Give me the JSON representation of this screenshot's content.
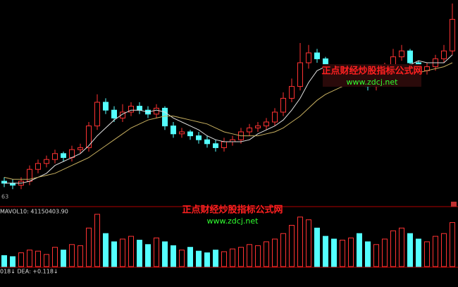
{
  "chart_data": {
    "type": "candlestick",
    "open": [
      10,
      9,
      8,
      10,
      16,
      19,
      21,
      24,
      22,
      26,
      27,
      38,
      50,
      46,
      42,
      45,
      48,
      46,
      44,
      47,
      38,
      34,
      35,
      33,
      31,
      29,
      27,
      30,
      31,
      35,
      37,
      38,
      40,
      45,
      52,
      58,
      70,
      75,
      72,
      63,
      62,
      64,
      66,
      62,
      58,
      60,
      68,
      73,
      76,
      70,
      66,
      68,
      72,
      76
    ],
    "high": [
      12,
      11,
      12,
      18,
      21,
      23,
      26,
      25,
      28,
      29,
      40,
      54,
      52,
      48,
      49,
      50,
      50,
      48,
      49,
      48,
      40,
      37,
      36,
      35,
      33,
      31,
      32,
      33,
      37,
      39,
      40,
      42,
      47,
      55,
      62,
      80,
      79,
      77,
      73,
      65,
      66,
      68,
      67,
      63,
      62,
      70,
      77,
      79,
      77,
      71,
      70,
      74,
      79,
      100
    ],
    "low": [
      7,
      6,
      6,
      8,
      14,
      17,
      19,
      20,
      20,
      24,
      25,
      36,
      44,
      40,
      40,
      43,
      44,
      42,
      42,
      36,
      32,
      32,
      31,
      29,
      27,
      25,
      25,
      28,
      29,
      33,
      35,
      36,
      38,
      43,
      50,
      56,
      67,
      70,
      61,
      60,
      60,
      62,
      60,
      56,
      56,
      58,
      66,
      71,
      68,
      64,
      64,
      66,
      70,
      74
    ],
    "close": [
      9,
      8,
      10,
      16,
      19,
      21,
      24,
      22,
      26,
      27,
      38,
      50,
      46,
      42,
      45,
      48,
      46,
      44,
      47,
      38,
      34,
      35,
      33,
      31,
      29,
      27,
      30,
      31,
      35,
      37,
      38,
      40,
      45,
      52,
      58,
      70,
      75,
      72,
      63,
      62,
      64,
      66,
      62,
      58,
      60,
      68,
      73,
      76,
      70,
      66,
      68,
      72,
      76,
      92
    ],
    "ylim": [
      0,
      100
    ],
    "lines": [
      {
        "color": "#e0e0e0",
        "values": [
          9,
          9,
          9,
          10,
          12,
          14,
          18,
          20,
          22,
          24,
          28,
          33,
          37,
          41,
          44,
          46,
          46,
          45,
          46,
          45,
          42,
          40,
          38,
          36,
          33,
          31,
          30,
          30,
          30,
          31,
          34,
          36,
          38,
          41,
          46,
          52,
          60,
          66,
          68,
          68,
          66,
          65,
          64,
          63,
          62,
          62,
          63,
          66,
          69,
          71,
          70,
          70,
          70,
          74
        ]
      },
      {
        "color": "#c8b060",
        "values": [
          12,
          11,
          11,
          11,
          12,
          13,
          14,
          16,
          18,
          20,
          22,
          25,
          28,
          31,
          34,
          37,
          39,
          41,
          42,
          43,
          43,
          42,
          41,
          40,
          39,
          37,
          35,
          34,
          33,
          33,
          33,
          34,
          35,
          37,
          40,
          43,
          47,
          51,
          54,
          56,
          58,
          59,
          60,
          61,
          61,
          62,
          62,
          63,
          64,
          65,
          66,
          67,
          68,
          70
        ]
      }
    ],
    "volume": [
      20,
      18,
      25,
      30,
      28,
      22,
      35,
      30,
      40,
      38,
      70,
      95,
      60,
      45,
      50,
      55,
      48,
      40,
      52,
      45,
      38,
      30,
      35,
      28,
      25,
      30,
      27,
      32,
      35,
      40,
      38,
      45,
      50,
      60,
      75,
      90,
      85,
      70,
      55,
      50,
      48,
      52,
      60,
      45,
      40,
      50,
      65,
      70,
      60,
      50,
      45,
      55,
      60,
      80
    ],
    "volume_ylim": [
      0,
      100
    ],
    "up_color": "#ff3232",
    "down_color": "#54ffff",
    "price_label": "63",
    "mavol_label": "MAVOL10: 41150403.90",
    "macd_label": "018↓ DEA: +0.118↓",
    "watermark_cn": "正点财经炒股指标公式网",
    "watermark_url": "www.zdcj.net"
  }
}
